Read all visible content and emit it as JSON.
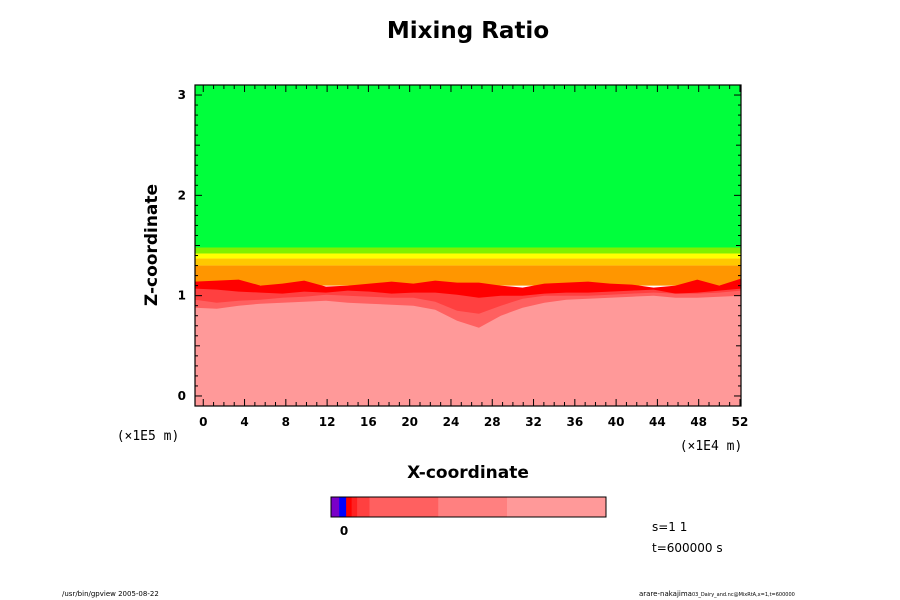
{
  "chart_data": {
    "type": "heatmap",
    "title": "Mixing Ratio",
    "xlabel": "X-coordinate",
    "ylabel": "Z-coordinate",
    "x_scale_label": "(×1E4 m)",
    "y_scale_label": "(×1E5 m)",
    "xlim": [
      -0.8,
      52.1
    ],
    "ylim": [
      -0.1,
      3.1
    ],
    "x_ticks": [
      "0",
      "4",
      "8",
      "12",
      "16",
      "20",
      "24",
      "28",
      "32",
      "36",
      "40",
      "44",
      "48",
      "52"
    ],
    "x_tick_values": [
      0,
      4,
      8,
      12,
      16,
      20,
      24,
      28,
      32,
      36,
      40,
      44,
      48,
      52
    ],
    "y_ticks": [
      "0",
      "1",
      "2",
      "3"
    ],
    "y_tick_values": [
      0,
      1,
      2,
      3
    ],
    "bands": [
      {
        "from": 1.48,
        "to": 3.1,
        "color": "#00ff3c"
      },
      {
        "from": 1.42,
        "to": 1.48,
        "color": "#7ff000"
      },
      {
        "from": 1.37,
        "to": 1.42,
        "color": "#ffff00"
      },
      {
        "from": 1.3,
        "to": 1.37,
        "color": "#ffc800"
      },
      {
        "from": 1.1,
        "to": 1.3,
        "color": "#ff9600"
      }
    ],
    "layers": [
      {
        "color": "#ff0000",
        "top": [
          1.14,
          1.15,
          1.16,
          1.1,
          1.12,
          1.15,
          1.09,
          1.1,
          1.12,
          1.14,
          1.12,
          1.15,
          1.13,
          1.13,
          1.1,
          1.08,
          1.12,
          1.13,
          1.14,
          1.12,
          1.11,
          1.08,
          1.1,
          1.16,
          1.1,
          1.17
        ]
      },
      {
        "color": "#ff4040",
        "top": [
          1.07,
          1.06,
          1.04,
          1.03,
          1.02,
          1.04,
          1.03,
          1.05,
          1.04,
          1.02,
          1.03,
          1.03,
          1.01,
          0.98,
          1.0,
          1.0,
          1.02,
          1.03,
          1.03,
          1.04,
          1.05,
          1.06,
          1.02,
          1.03,
          1.05,
          1.07
        ]
      },
      {
        "color": "#ff6060",
        "top": [
          0.96,
          0.93,
          0.95,
          0.96,
          0.98,
          0.99,
          1.01,
          1.0,
          0.99,
          0.98,
          0.98,
          0.94,
          0.85,
          0.82,
          0.9,
          0.97,
          1.0,
          1.0,
          1.0,
          1.01,
          1.02,
          1.03,
          1.02,
          1.02,
          1.03,
          1.05
        ]
      },
      {
        "color": "#ff9999",
        "top": [
          0.88,
          0.87,
          0.9,
          0.92,
          0.93,
          0.94,
          0.95,
          0.93,
          0.92,
          0.91,
          0.9,
          0.86,
          0.75,
          0.68,
          0.8,
          0.88,
          0.93,
          0.96,
          0.97,
          0.98,
          0.99,
          1.0,
          0.98,
          0.98,
          0.99,
          1.0
        ]
      }
    ],
    "colorbar": {
      "colors": [
        "#7a00c8",
        "#0000ff",
        "#ff0000",
        "#ff2020",
        "#ff4040",
        "#ff6060",
        "#ff8080",
        "#ff9999"
      ],
      "widths": [
        0.03,
        0.025,
        0.02,
        0.02,
        0.045,
        0.25,
        0.25,
        0.36
      ],
      "label": "0"
    }
  },
  "info": {
    "scale": "s=1 1",
    "time": "t=600000 s"
  },
  "footer": {
    "left": "/usr/bin/gpview 2005-08-22",
    "right_main": "arare-nakajima",
    "right_small": "03_Dairy_and.nc@MixRtA,x=1,t=600000"
  },
  "colors": {
    "frame": "#000000",
    "background": "#ffffff"
  }
}
